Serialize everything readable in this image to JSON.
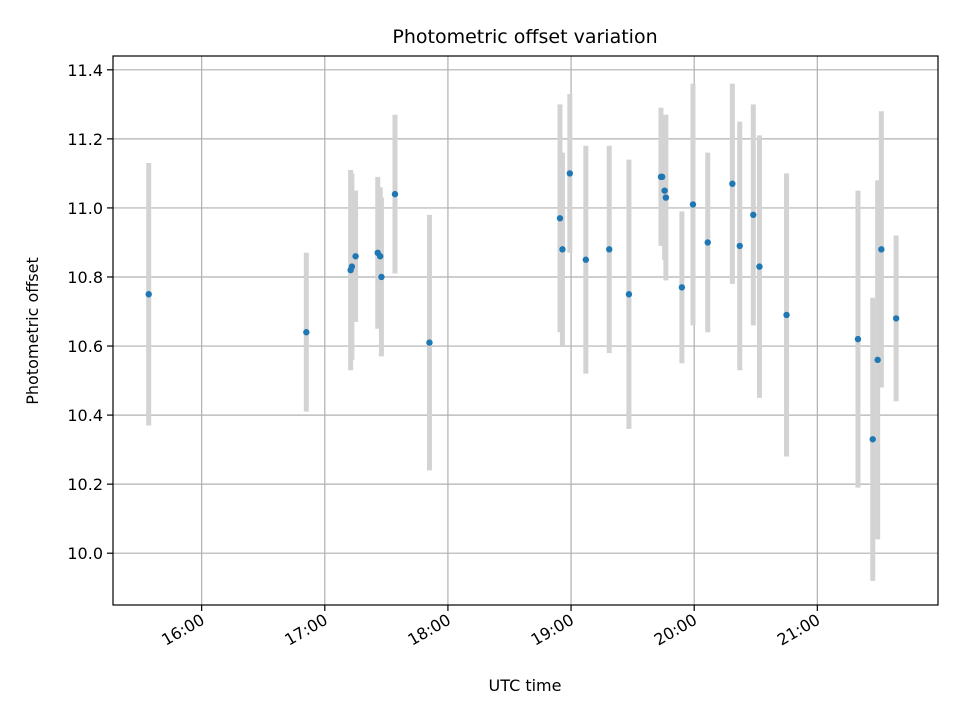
{
  "chart_data": {
    "type": "scatter",
    "title": "Photometric offset variation",
    "xlabel": "UTC time",
    "ylabel": "Photometric offset",
    "x_unit": "hours",
    "xlim": [
      15.28,
      21.98
    ],
    "ylim": [
      9.85,
      11.44
    ],
    "x_ticks": [
      {
        "value": 16,
        "label": "16:00"
      },
      {
        "value": 17,
        "label": "17:00"
      },
      {
        "value": 18,
        "label": "18:00"
      },
      {
        "value": 19,
        "label": "19:00"
      },
      {
        "value": 20,
        "label": "20:00"
      },
      {
        "value": 21,
        "label": "21:00"
      }
    ],
    "y_ticks": [
      {
        "value": 10.0,
        "label": "10.0"
      },
      {
        "value": 10.2,
        "label": "10.2"
      },
      {
        "value": 10.4,
        "label": "10.4"
      },
      {
        "value": 10.6,
        "label": "10.6"
      },
      {
        "value": 10.8,
        "label": "10.8"
      },
      {
        "value": 11.0,
        "label": "11.0"
      },
      {
        "value": 11.2,
        "label": "11.2"
      },
      {
        "value": 11.4,
        "label": "11.4"
      }
    ],
    "grid": true,
    "marker_color": "#1f77b4",
    "errorbar_color": "#d3d3d3",
    "points": [
      {
        "x": 15.57,
        "y": 10.75,
        "err": 0.38
      },
      {
        "x": 16.85,
        "y": 10.64,
        "err": 0.23
      },
      {
        "x": 17.21,
        "y": 10.82,
        "err": 0.29
      },
      {
        "x": 17.22,
        "y": 10.83,
        "err": 0.27
      },
      {
        "x": 17.25,
        "y": 10.86,
        "err": 0.19
      },
      {
        "x": 17.43,
        "y": 10.87,
        "err": 0.22
      },
      {
        "x": 17.45,
        "y": 10.86,
        "err": 0.2
      },
      {
        "x": 17.46,
        "y": 10.8,
        "err": 0.23
      },
      {
        "x": 17.57,
        "y": 11.04,
        "err": 0.23
      },
      {
        "x": 17.85,
        "y": 10.61,
        "err": 0.37
      },
      {
        "x": 18.91,
        "y": 10.97,
        "err": 0.33
      },
      {
        "x": 18.93,
        "y": 10.88,
        "err": 0.28
      },
      {
        "x": 18.99,
        "y": 11.1,
        "err": 0.23
      },
      {
        "x": 19.12,
        "y": 10.85,
        "err": 0.33
      },
      {
        "x": 19.31,
        "y": 10.88,
        "err": 0.3
      },
      {
        "x": 19.47,
        "y": 10.75,
        "err": 0.39
      },
      {
        "x": 19.73,
        "y": 11.09,
        "err": 0.2
      },
      {
        "x": 19.74,
        "y": 11.09,
        "err": 0.17
      },
      {
        "x": 19.76,
        "y": 11.05,
        "err": 0.2
      },
      {
        "x": 19.77,
        "y": 11.03,
        "err": 0.24
      },
      {
        "x": 19.9,
        "y": 10.77,
        "err": 0.22
      },
      {
        "x": 19.99,
        "y": 11.01,
        "err": 0.35
      },
      {
        "x": 20.11,
        "y": 10.9,
        "err": 0.26
      },
      {
        "x": 20.31,
        "y": 11.07,
        "err": 0.29
      },
      {
        "x": 20.37,
        "y": 10.89,
        "err": 0.36
      },
      {
        "x": 20.48,
        "y": 10.98,
        "err": 0.32
      },
      {
        "x": 20.53,
        "y": 10.83,
        "err": 0.38
      },
      {
        "x": 20.75,
        "y": 10.69,
        "err": 0.41
      },
      {
        "x": 21.33,
        "y": 10.62,
        "err": 0.43
      },
      {
        "x": 21.45,
        "y": 10.33,
        "err": 0.41
      },
      {
        "x": 21.49,
        "y": 10.56,
        "err": 0.52
      },
      {
        "x": 21.52,
        "y": 10.88,
        "err": 0.4
      },
      {
        "x": 21.64,
        "y": 10.68,
        "err": 0.24
      }
    ]
  }
}
